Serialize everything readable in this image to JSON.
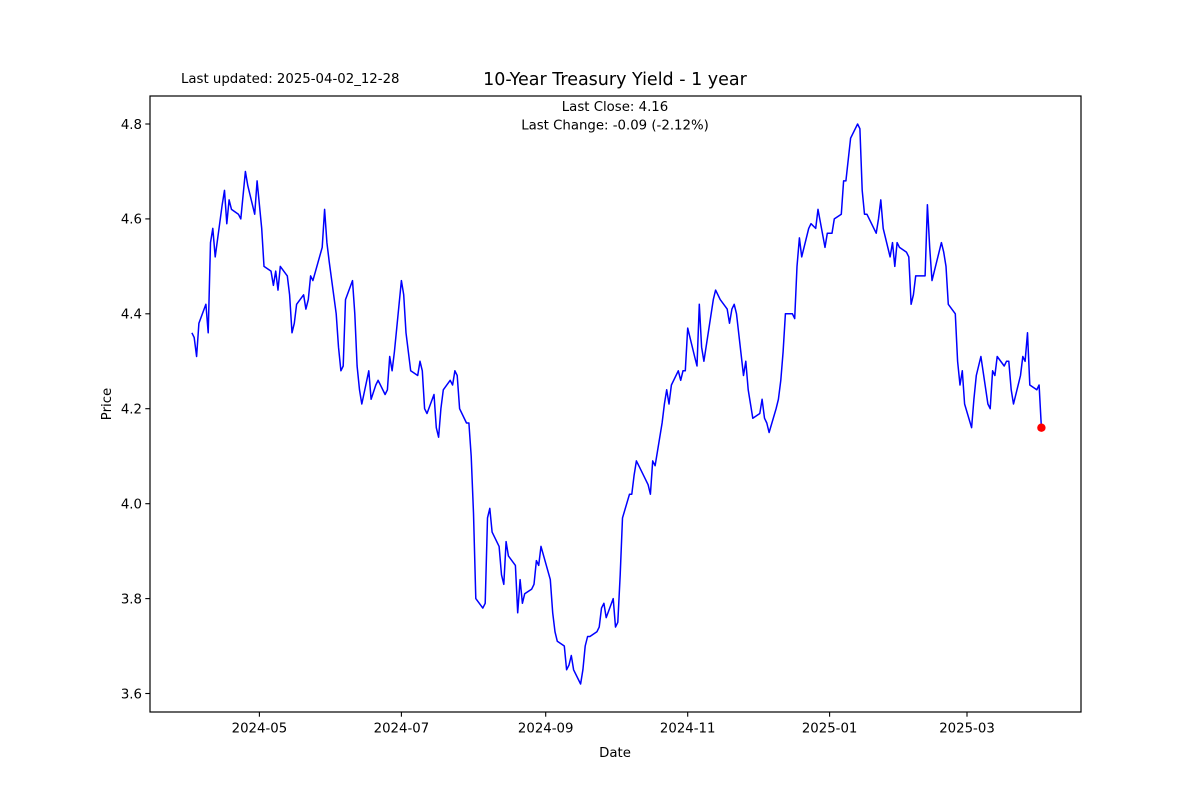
{
  "header": {
    "last_updated": "Last updated: 2025-04-02_12-28",
    "title": "10-Year Treasury Yield - 1 year",
    "last_close": "Last Close: 4.16",
    "last_change": "Last Change: -0.09 (-2.12%)"
  },
  "chart_data": {
    "type": "line",
    "title": "10-Year Treasury Yield - 1 year",
    "xlabel": "Date",
    "ylabel": "Price",
    "grid": false,
    "legend": "none",
    "line_color": "#0000ff",
    "last_point_color": "#ff0000",
    "last_close": 4.16,
    "last_change": -0.09,
    "last_change_pct": "-2.12%",
    "ylim": [
      3.561,
      4.859
    ],
    "xlim": [
      "2024-03-15",
      "2025-04-19"
    ],
    "y_ticks": [
      3.6,
      3.8,
      4.0,
      4.2,
      4.4,
      4.6,
      4.8
    ],
    "x_ticks": [
      {
        "date": "2024-05-01",
        "label": "2024-05"
      },
      {
        "date": "2024-07-01",
        "label": "2024-07"
      },
      {
        "date": "2024-09-01",
        "label": "2024-09"
      },
      {
        "date": "2024-11-01",
        "label": "2024-11"
      },
      {
        "date": "2025-01-01",
        "label": "2025-01"
      },
      {
        "date": "2025-03-01",
        "label": "2025-03"
      }
    ],
    "series": [
      {
        "name": "10-Year Treasury Yield",
        "points": [
          [
            "2024-04-02",
            4.36
          ],
          [
            "2024-04-03",
            4.35
          ],
          [
            "2024-04-04",
            4.31
          ],
          [
            "2024-04-05",
            4.38
          ],
          [
            "2024-04-08",
            4.42
          ],
          [
            "2024-04-09",
            4.36
          ],
          [
            "2024-04-10",
            4.55
          ],
          [
            "2024-04-11",
            4.58
          ],
          [
            "2024-04-12",
            4.52
          ],
          [
            "2024-04-15",
            4.63
          ],
          [
            "2024-04-16",
            4.66
          ],
          [
            "2024-04-17",
            4.59
          ],
          [
            "2024-04-18",
            4.64
          ],
          [
            "2024-04-19",
            4.62
          ],
          [
            "2024-04-22",
            4.61
          ],
          [
            "2024-04-23",
            4.6
          ],
          [
            "2024-04-24",
            4.65
          ],
          [
            "2024-04-25",
            4.7
          ],
          [
            "2024-04-26",
            4.67
          ],
          [
            "2024-04-29",
            4.61
          ],
          [
            "2024-04-30",
            4.68
          ],
          [
            "2024-05-01",
            4.63
          ],
          [
            "2024-05-02",
            4.58
          ],
          [
            "2024-05-03",
            4.5
          ],
          [
            "2024-05-06",
            4.49
          ],
          [
            "2024-05-07",
            4.46
          ],
          [
            "2024-05-08",
            4.49
          ],
          [
            "2024-05-09",
            4.45
          ],
          [
            "2024-05-10",
            4.5
          ],
          [
            "2024-05-13",
            4.48
          ],
          [
            "2024-05-14",
            4.44
          ],
          [
            "2024-05-15",
            4.36
          ],
          [
            "2024-05-16",
            4.38
          ],
          [
            "2024-05-17",
            4.42
          ],
          [
            "2024-05-20",
            4.44
          ],
          [
            "2024-05-21",
            4.41
          ],
          [
            "2024-05-22",
            4.43
          ],
          [
            "2024-05-23",
            4.48
          ],
          [
            "2024-05-24",
            4.47
          ],
          [
            "2024-05-28",
            4.54
          ],
          [
            "2024-05-29",
            4.62
          ],
          [
            "2024-05-30",
            4.55
          ],
          [
            "2024-05-31",
            4.51
          ],
          [
            "2024-06-03",
            4.4
          ],
          [
            "2024-06-04",
            4.33
          ],
          [
            "2024-06-05",
            4.28
          ],
          [
            "2024-06-06",
            4.29
          ],
          [
            "2024-06-07",
            4.43
          ],
          [
            "2024-06-10",
            4.47
          ],
          [
            "2024-06-11",
            4.4
          ],
          [
            "2024-06-12",
            4.29
          ],
          [
            "2024-06-13",
            4.24
          ],
          [
            "2024-06-14",
            4.21
          ],
          [
            "2024-06-17",
            4.28
          ],
          [
            "2024-06-18",
            4.22
          ],
          [
            "2024-06-20",
            4.25
          ],
          [
            "2024-06-21",
            4.26
          ],
          [
            "2024-06-24",
            4.23
          ],
          [
            "2024-06-25",
            4.24
          ],
          [
            "2024-06-26",
            4.31
          ],
          [
            "2024-06-27",
            4.28
          ],
          [
            "2024-06-28",
            4.32
          ],
          [
            "2024-07-01",
            4.47
          ],
          [
            "2024-07-02",
            4.44
          ],
          [
            "2024-07-03",
            4.36
          ],
          [
            "2024-07-05",
            4.28
          ],
          [
            "2024-07-08",
            4.27
          ],
          [
            "2024-07-09",
            4.3
          ],
          [
            "2024-07-10",
            4.28
          ],
          [
            "2024-07-11",
            4.2
          ],
          [
            "2024-07-12",
            4.19
          ],
          [
            "2024-07-15",
            4.23
          ],
          [
            "2024-07-16",
            4.16
          ],
          [
            "2024-07-17",
            4.14
          ],
          [
            "2024-07-18",
            4.2
          ],
          [
            "2024-07-19",
            4.24
          ],
          [
            "2024-07-22",
            4.26
          ],
          [
            "2024-07-23",
            4.25
          ],
          [
            "2024-07-24",
            4.28
          ],
          [
            "2024-07-25",
            4.27
          ],
          [
            "2024-07-26",
            4.2
          ],
          [
            "2024-07-29",
            4.17
          ],
          [
            "2024-07-30",
            4.17
          ],
          [
            "2024-07-31",
            4.1
          ],
          [
            "2024-08-01",
            3.98
          ],
          [
            "2024-08-02",
            3.8
          ],
          [
            "2024-08-05",
            3.78
          ],
          [
            "2024-08-06",
            3.79
          ],
          [
            "2024-08-07",
            3.97
          ],
          [
            "2024-08-08",
            3.99
          ],
          [
            "2024-08-09",
            3.94
          ],
          [
            "2024-08-12",
            3.91
          ],
          [
            "2024-08-13",
            3.85
          ],
          [
            "2024-08-14",
            3.83
          ],
          [
            "2024-08-15",
            3.92
          ],
          [
            "2024-08-16",
            3.89
          ],
          [
            "2024-08-19",
            3.87
          ],
          [
            "2024-08-20",
            3.77
          ],
          [
            "2024-08-21",
            3.84
          ],
          [
            "2024-08-22",
            3.79
          ],
          [
            "2024-08-23",
            3.81
          ],
          [
            "2024-08-26",
            3.82
          ],
          [
            "2024-08-27",
            3.83
          ],
          [
            "2024-08-28",
            3.88
          ],
          [
            "2024-08-29",
            3.87
          ],
          [
            "2024-08-30",
            3.91
          ],
          [
            "2024-09-03",
            3.84
          ],
          [
            "2024-09-04",
            3.77
          ],
          [
            "2024-09-05",
            3.73
          ],
          [
            "2024-09-06",
            3.71
          ],
          [
            "2024-09-09",
            3.7
          ],
          [
            "2024-09-10",
            3.65
          ],
          [
            "2024-09-11",
            3.66
          ],
          [
            "2024-09-12",
            3.68
          ],
          [
            "2024-09-13",
            3.65
          ],
          [
            "2024-09-16",
            3.62
          ],
          [
            "2024-09-17",
            3.65
          ],
          [
            "2024-09-18",
            3.7
          ],
          [
            "2024-09-19",
            3.72
          ],
          [
            "2024-09-20",
            3.72
          ],
          [
            "2024-09-23",
            3.73
          ],
          [
            "2024-09-24",
            3.74
          ],
          [
            "2024-09-25",
            3.78
          ],
          [
            "2024-09-26",
            3.79
          ],
          [
            "2024-09-27",
            3.76
          ],
          [
            "2024-09-30",
            3.8
          ],
          [
            "2024-10-01",
            3.74
          ],
          [
            "2024-10-02",
            3.75
          ],
          [
            "2024-10-03",
            3.85
          ],
          [
            "2024-10-04",
            3.97
          ],
          [
            "2024-10-07",
            4.02
          ],
          [
            "2024-10-08",
            4.02
          ],
          [
            "2024-10-09",
            4.06
          ],
          [
            "2024-10-10",
            4.09
          ],
          [
            "2024-10-11",
            4.08
          ],
          [
            "2024-10-15",
            4.04
          ],
          [
            "2024-10-16",
            4.02
          ],
          [
            "2024-10-17",
            4.09
          ],
          [
            "2024-10-18",
            4.08
          ],
          [
            "2024-10-21",
            4.17
          ],
          [
            "2024-10-22",
            4.21
          ],
          [
            "2024-10-23",
            4.24
          ],
          [
            "2024-10-24",
            4.21
          ],
          [
            "2024-10-25",
            4.25
          ],
          [
            "2024-10-28",
            4.28
          ],
          [
            "2024-10-29",
            4.26
          ],
          [
            "2024-10-30",
            4.28
          ],
          [
            "2024-10-31",
            4.28
          ],
          [
            "2024-11-01",
            4.37
          ],
          [
            "2024-11-04",
            4.31
          ],
          [
            "2024-11-05",
            4.29
          ],
          [
            "2024-11-06",
            4.42
          ],
          [
            "2024-11-07",
            4.33
          ],
          [
            "2024-11-08",
            4.3
          ],
          [
            "2024-11-12",
            4.43
          ],
          [
            "2024-11-13",
            4.45
          ],
          [
            "2024-11-14",
            4.44
          ],
          [
            "2024-11-15",
            4.43
          ],
          [
            "2024-11-18",
            4.41
          ],
          [
            "2024-11-19",
            4.38
          ],
          [
            "2024-11-20",
            4.41
          ],
          [
            "2024-11-21",
            4.42
          ],
          [
            "2024-11-22",
            4.4
          ],
          [
            "2024-11-25",
            4.27
          ],
          [
            "2024-11-26",
            4.3
          ],
          [
            "2024-11-27",
            4.24
          ],
          [
            "2024-11-29",
            4.18
          ],
          [
            "2024-12-02",
            4.19
          ],
          [
            "2024-12-03",
            4.22
          ],
          [
            "2024-12-04",
            4.18
          ],
          [
            "2024-12-05",
            4.17
          ],
          [
            "2024-12-06",
            4.15
          ],
          [
            "2024-12-09",
            4.2
          ],
          [
            "2024-12-10",
            4.22
          ],
          [
            "2024-12-11",
            4.26
          ],
          [
            "2024-12-12",
            4.32
          ],
          [
            "2024-12-13",
            4.4
          ],
          [
            "2024-12-16",
            4.4
          ],
          [
            "2024-12-17",
            4.39
          ],
          [
            "2024-12-18",
            4.5
          ],
          [
            "2024-12-19",
            4.56
          ],
          [
            "2024-12-20",
            4.52
          ],
          [
            "2024-12-23",
            4.58
          ],
          [
            "2024-12-24",
            4.59
          ],
          [
            "2024-12-26",
            4.58
          ],
          [
            "2024-12-27",
            4.62
          ],
          [
            "2024-12-30",
            4.54
          ],
          [
            "2024-12-31",
            4.57
          ],
          [
            "2025-01-02",
            4.57
          ],
          [
            "2025-01-03",
            4.6
          ],
          [
            "2025-01-06",
            4.61
          ],
          [
            "2025-01-07",
            4.68
          ],
          [
            "2025-01-08",
            4.68
          ],
          [
            "2025-01-10",
            4.77
          ],
          [
            "2025-01-13",
            4.8
          ],
          [
            "2025-01-14",
            4.79
          ],
          [
            "2025-01-15",
            4.66
          ],
          [
            "2025-01-16",
            4.61
          ],
          [
            "2025-01-17",
            4.61
          ],
          [
            "2025-01-21",
            4.57
          ],
          [
            "2025-01-22",
            4.6
          ],
          [
            "2025-01-23",
            4.64
          ],
          [
            "2025-01-24",
            4.58
          ],
          [
            "2025-01-27",
            4.52
          ],
          [
            "2025-01-28",
            4.55
          ],
          [
            "2025-01-29",
            4.5
          ],
          [
            "2025-01-30",
            4.55
          ],
          [
            "2025-01-31",
            4.54
          ],
          [
            "2025-02-03",
            4.53
          ],
          [
            "2025-02-04",
            4.52
          ],
          [
            "2025-02-05",
            4.42
          ],
          [
            "2025-02-06",
            4.44
          ],
          [
            "2025-02-07",
            4.48
          ],
          [
            "2025-02-10",
            4.48
          ],
          [
            "2025-02-11",
            4.48
          ],
          [
            "2025-02-12",
            4.63
          ],
          [
            "2025-02-13",
            4.54
          ],
          [
            "2025-02-14",
            4.47
          ],
          [
            "2025-02-18",
            4.55
          ],
          [
            "2025-02-19",
            4.53
          ],
          [
            "2025-02-20",
            4.5
          ],
          [
            "2025-02-21",
            4.42
          ],
          [
            "2025-02-24",
            4.4
          ],
          [
            "2025-02-25",
            4.3
          ],
          [
            "2025-02-26",
            4.25
          ],
          [
            "2025-02-27",
            4.28
          ],
          [
            "2025-02-28",
            4.21
          ],
          [
            "2025-03-03",
            4.16
          ],
          [
            "2025-03-04",
            4.22
          ],
          [
            "2025-03-05",
            4.27
          ],
          [
            "2025-03-06",
            4.29
          ],
          [
            "2025-03-07",
            4.31
          ],
          [
            "2025-03-10",
            4.21
          ],
          [
            "2025-03-11",
            4.2
          ],
          [
            "2025-03-12",
            4.28
          ],
          [
            "2025-03-13",
            4.27
          ],
          [
            "2025-03-14",
            4.31
          ],
          [
            "2025-03-17",
            4.29
          ],
          [
            "2025-03-18",
            4.3
          ],
          [
            "2025-03-19",
            4.3
          ],
          [
            "2025-03-20",
            4.24
          ],
          [
            "2025-03-21",
            4.21
          ],
          [
            "2025-03-24",
            4.27
          ],
          [
            "2025-03-25",
            4.31
          ],
          [
            "2025-03-26",
            4.3
          ],
          [
            "2025-03-27",
            4.36
          ],
          [
            "2025-03-28",
            4.25
          ],
          [
            "2025-03-31",
            4.24
          ],
          [
            "2025-04-01",
            4.25
          ],
          [
            "2025-04-02",
            4.16
          ]
        ]
      }
    ]
  }
}
